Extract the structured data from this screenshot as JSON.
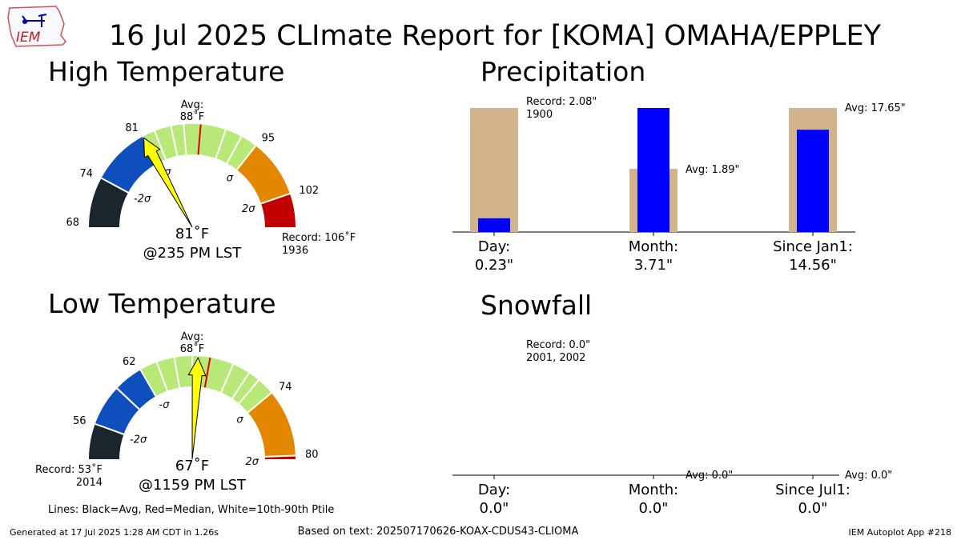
{
  "header": {
    "title": "16 Jul 2025 CLImate Report for [KOMA] OMAHA/EPPLEY",
    "logo_text": "IEM"
  },
  "footer": {
    "generated": "Generated at 17 Jul 2025 1:28 AM CDT in 1.26s",
    "based_on": "Based on text: 202507170626-KOAX-CDUS43-CLIOMA",
    "app": "IEM Autoplot App #218",
    "lines_legend": "Lines: Black=Avg, Red=Median, White=10th-90th Ptile"
  },
  "colors": {
    "band_dark": "#1b262c",
    "band_blue": "#0f4fbd",
    "band_green": "#b8e877",
    "band_orange": "#e48700",
    "band_red": "#c20000",
    "median": "#dd0000",
    "needle": "#ffff00",
    "precip_avg": "#d2b48c",
    "precip_obs": "#0000ff"
  },
  "chart_data": [
    {
      "type": "gauge",
      "title": "High Temperature",
      "range": [
        68,
        106
      ],
      "ticks": [
        {
          "value": 68,
          "label": "68"
        },
        {
          "value": 74,
          "label": "74"
        },
        {
          "value": 81,
          "label": "81"
        },
        {
          "value": 95,
          "label": "95"
        },
        {
          "value": 102,
          "label": "102"
        }
      ],
      "sigma_labels": [
        {
          "value": 74,
          "label": "-2σ"
        },
        {
          "value": 81,
          "label": "-σ"
        },
        {
          "value": 95,
          "label": "σ"
        },
        {
          "value": 102,
          "label": "2σ"
        }
      ],
      "bands": [
        {
          "from": 68,
          "to": 74,
          "color": "band_dark"
        },
        {
          "from": 74,
          "to": 81,
          "color": "band_blue"
        },
        {
          "from": 81,
          "to": 95,
          "color": "band_green"
        },
        {
          "from": 95,
          "to": 102,
          "color": "band_orange"
        },
        {
          "from": 102,
          "to": 106,
          "color": "band_red"
        }
      ],
      "percentile_lines": [
        82.5,
        84.5,
        86,
        91,
        93
      ],
      "median": 88,
      "avg": {
        "label": "Avg:",
        "value": "88˚F"
      },
      "observed": 81,
      "observed_label": "81˚F",
      "time_label": "@235 PM LST",
      "record": {
        "label": "Record: 106˚F",
        "year": "1936"
      }
    },
    {
      "type": "gauge",
      "title": "Low Temperature",
      "range": [
        53,
        80
      ],
      "ticks": [
        {
          "value": 56,
          "label": "56"
        },
        {
          "value": 62,
          "label": "62"
        },
        {
          "value": 74,
          "label": "74"
        },
        {
          "value": 80,
          "label": "80"
        }
      ],
      "sigma_labels": [
        {
          "value": 56,
          "label": "-2σ"
        },
        {
          "value": 62,
          "label": "-σ"
        },
        {
          "value": 74,
          "label": "σ"
        },
        {
          "value": 79.9,
          "label": "2σ"
        }
      ],
      "bands": [
        {
          "from": 53,
          "to": 56,
          "color": "band_dark"
        },
        {
          "from": 56,
          "to": 59.5,
          "color": "band_blue"
        },
        {
          "from": 59.5,
          "to": 62,
          "color": "band_blue"
        },
        {
          "from": 62,
          "to": 74,
          "color": "band_green"
        },
        {
          "from": 74,
          "to": 79.7,
          "color": "band_orange"
        },
        {
          "from": 79.7,
          "to": 80,
          "color": "band_red"
        }
      ],
      "percentile_lines": [
        59.5,
        63.5,
        65,
        66.5,
        70,
        71.5,
        72.5
      ],
      "median": 68,
      "avg": {
        "label": "Avg:",
        "value": "68˚F"
      },
      "observed": 67,
      "observed_label": "67˚F",
      "time_label": "@1159 PM LST",
      "record": {
        "label": "Record: 53˚F",
        "year": "2014"
      }
    },
    {
      "type": "bar",
      "title": "Precipitation",
      "categories": [
        "Day:",
        "Month:",
        "Since Jan1:"
      ],
      "observed": [
        0.23,
        3.71,
        14.56
      ],
      "observed_labels": [
        "0.23\"",
        "3.71\"",
        "14.56\""
      ],
      "reference_labels": [
        {
          "line1": "Record: 2.08\"",
          "line2": "1900"
        },
        {
          "line1": "Avg: 1.89\"",
          "line2": ""
        },
        {
          "line1": "Avg: 17.65\"",
          "line2": ""
        }
      ],
      "reference": [
        2.08,
        1.89,
        17.65
      ],
      "scale_max": [
        2.08,
        1.89,
        17.65
      ],
      "observed_scale_max": [
        2.08,
        3.71,
        17.65
      ]
    },
    {
      "type": "bar",
      "title": "Snowfall",
      "categories": [
        "Day:",
        "Month:",
        "Since Jul1:"
      ],
      "observed": [
        0.0,
        0.0,
        0.0
      ],
      "observed_labels": [
        "0.0\"",
        "0.0\"",
        "0.0\""
      ],
      "reference_labels": [
        {
          "line1": "Record: 0.0\"",
          "line2": "2001, 2002"
        },
        {
          "line1": "Avg: 0.0\"",
          "line2": ""
        },
        {
          "line1": "Avg: 0.0\"",
          "line2": ""
        }
      ],
      "reference": [
        0.0,
        0.0,
        0.0
      ]
    }
  ]
}
